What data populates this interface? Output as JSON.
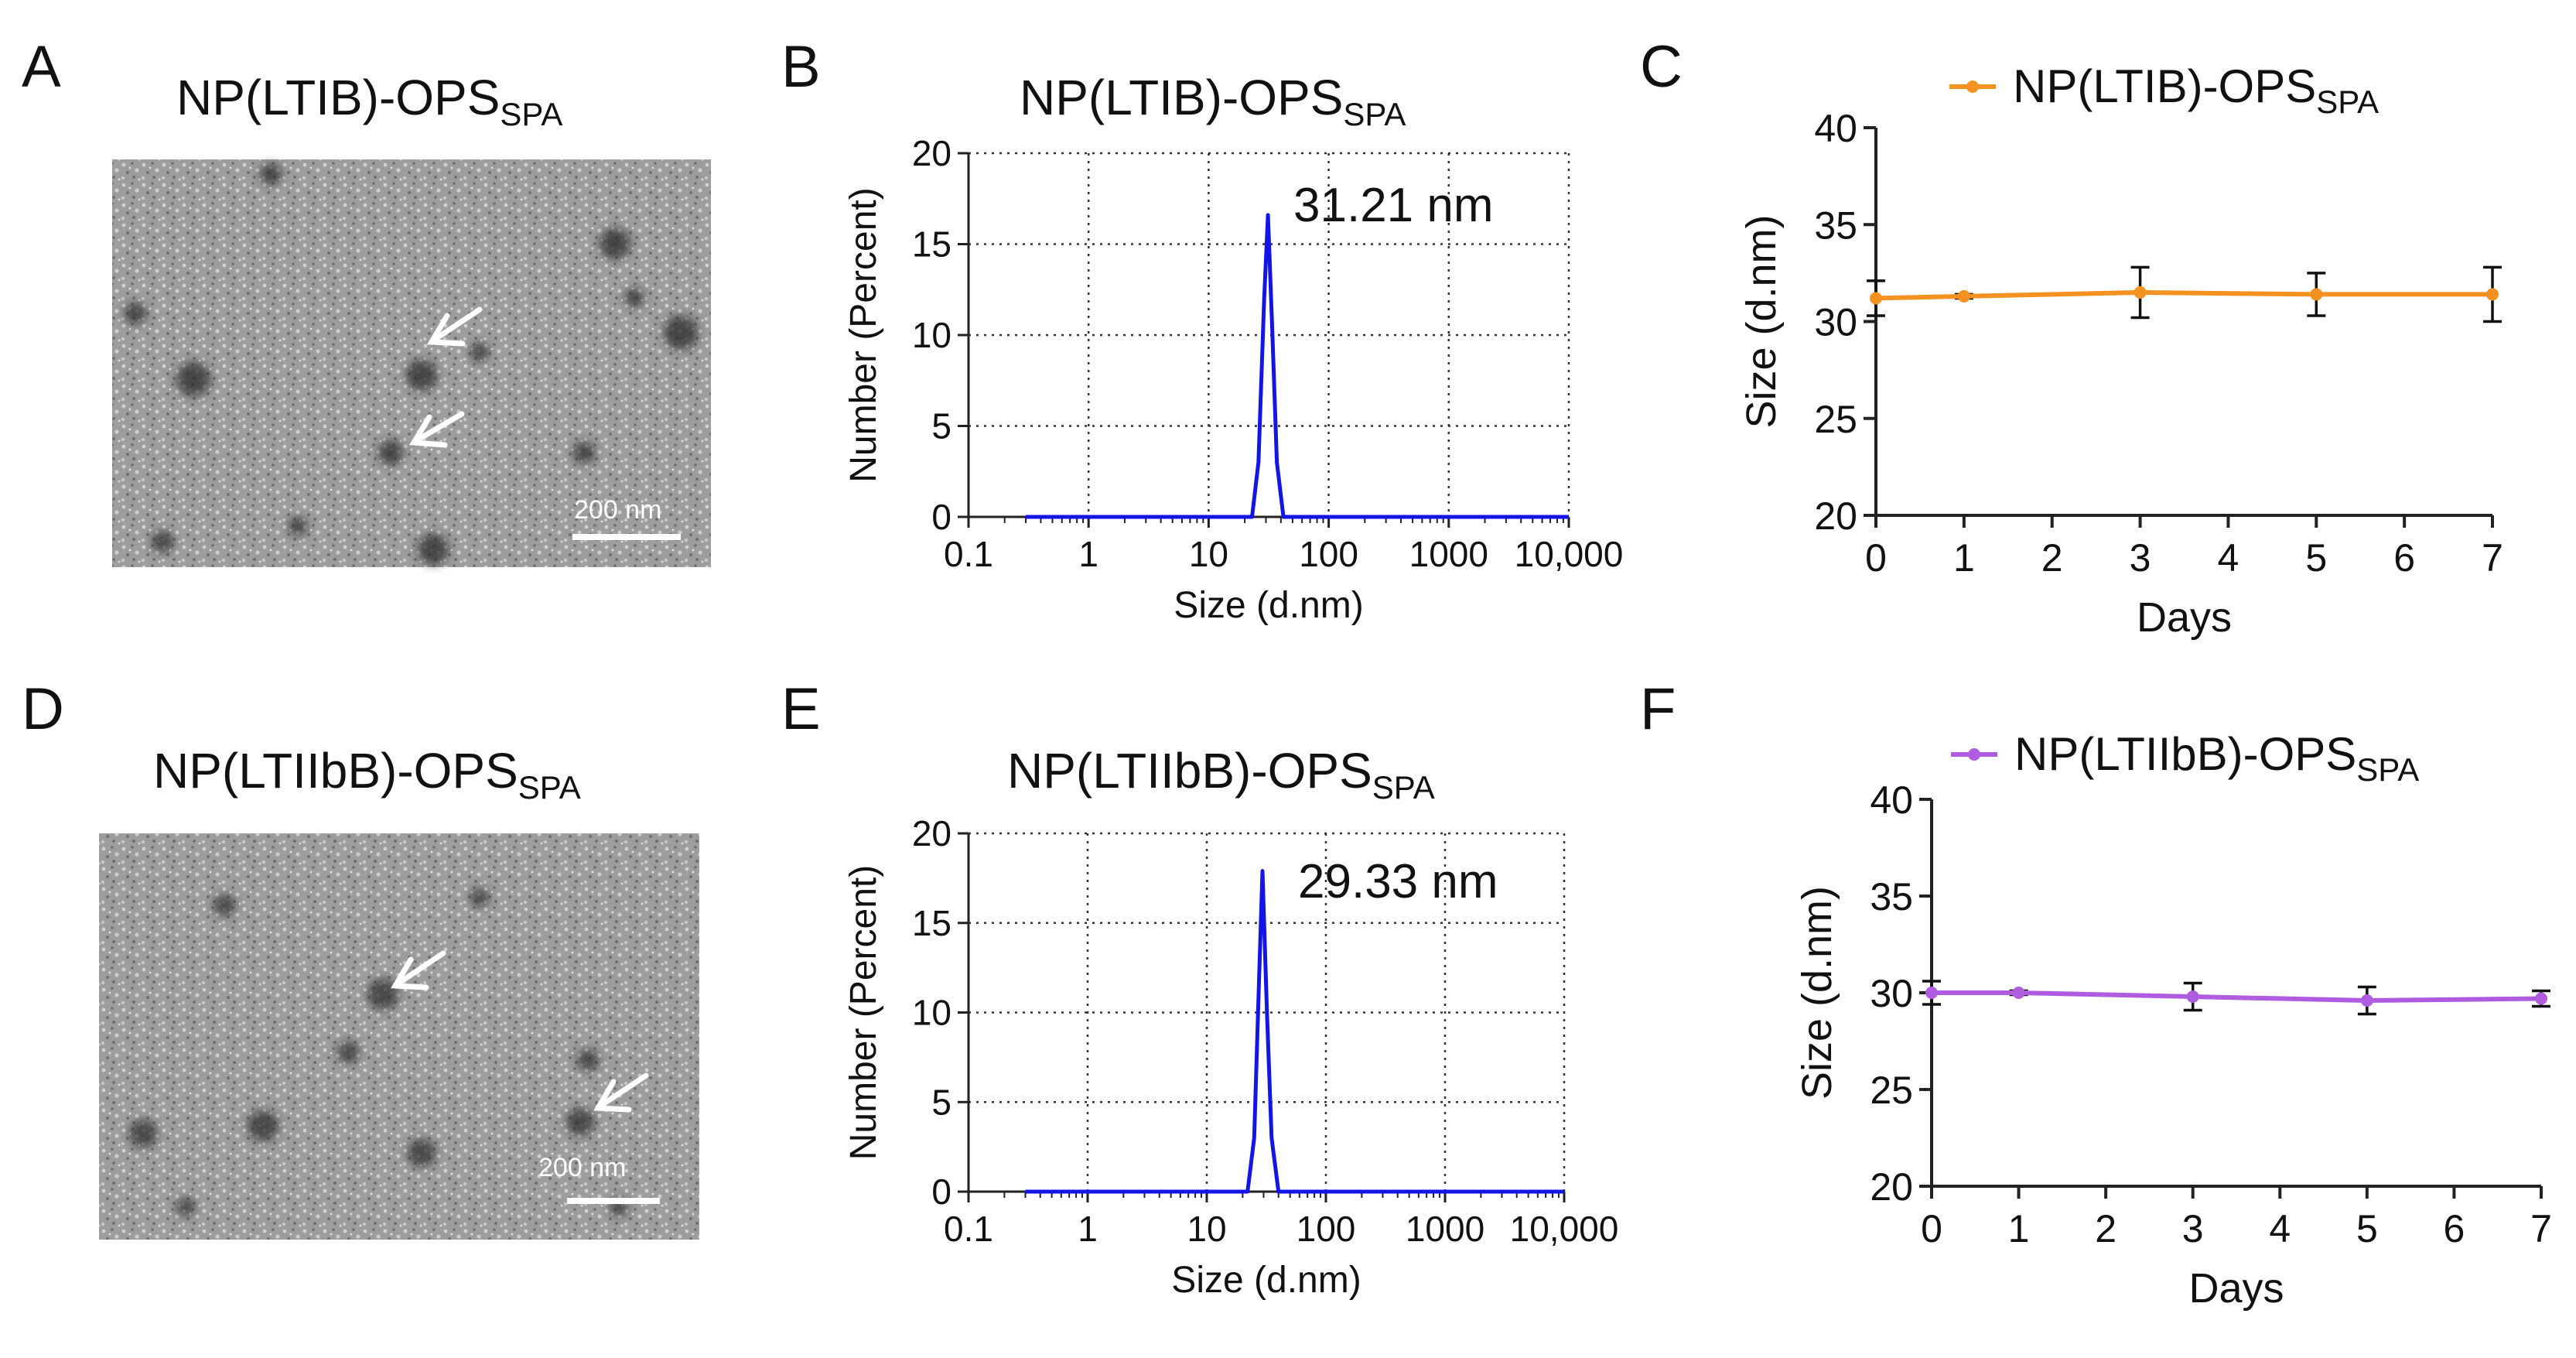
{
  "panels": {
    "A": {
      "letter": "A",
      "title": "NP(LTIB)-OPS",
      "title_sub": "SPA",
      "scale_bar": "200 nm"
    },
    "B": {
      "letter": "B"
    },
    "C": {
      "letter": "C"
    },
    "D": {
      "letter": "D",
      "title": "NP(LTIIbB)-OPS",
      "title_sub": "SPA",
      "scale_bar": "200 nm"
    },
    "E": {
      "letter": "E"
    },
    "F": {
      "letter": "F"
    }
  },
  "chart_data": [
    {
      "panel": "B",
      "type": "line",
      "title": "NP(LTIB)-OPS",
      "title_sub": "SPA",
      "xlabel": "Size (d.nm)",
      "ylabel": "Number (Percent)",
      "xscale": "log",
      "xlim": [
        0.1,
        10000
      ],
      "ylim": [
        0,
        20
      ],
      "xticks": [
        "0.1",
        "1",
        "10",
        "100",
        "1000",
        "10,000"
      ],
      "yticks": [
        "0",
        "5",
        "10",
        "15",
        "20"
      ],
      "grid": true,
      "color": "#1414e6",
      "annotation": "31.21 nm",
      "series": [
        {
          "x": [
            0.3,
            23,
            26,
            29,
            31.21,
            34,
            37,
            42,
            10000
          ],
          "y": [
            0,
            0,
            3,
            12,
            16.6,
            10,
            3,
            0,
            0
          ]
        }
      ]
    },
    {
      "panel": "E",
      "type": "line",
      "title": "NP(LTIIbB)-OPS",
      "title_sub": "SPA",
      "xlabel": "Size (d.nm)",
      "ylabel": "Number (Percent)",
      "xscale": "log",
      "xlim": [
        0.1,
        10000
      ],
      "ylim": [
        0,
        20
      ],
      "xticks": [
        "0.1",
        "1",
        "10",
        "100",
        "1000",
        "10,000"
      ],
      "yticks": [
        "0",
        "5",
        "10",
        "15",
        "20"
      ],
      "grid": true,
      "color": "#1414e6",
      "annotation": "29.33 nm",
      "series": [
        {
          "x": [
            0.3,
            22,
            25,
            27.5,
            29.33,
            32,
            35,
            40,
            10000
          ],
          "y": [
            0,
            0,
            3,
            12,
            17.9,
            10,
            3,
            0,
            0
          ]
        }
      ]
    },
    {
      "panel": "C",
      "type": "line",
      "xlabel": "Days",
      "ylabel": "Size (d.nm)",
      "xlim": [
        0,
        7
      ],
      "ylim": [
        20,
        40
      ],
      "xticks": [
        "0",
        "1",
        "2",
        "3",
        "4",
        "5",
        "6",
        "7"
      ],
      "yticks": [
        "20",
        "25",
        "30",
        "35",
        "40"
      ],
      "grid": false,
      "legend": "top",
      "series": [
        {
          "name": "NP(LTIB)-OPS",
          "name_sub": "SPA",
          "color": "#f39220",
          "x": [
            0,
            1,
            3,
            5,
            7
          ],
          "y": [
            31.2,
            31.3,
            31.5,
            31.4,
            31.4
          ],
          "err": [
            0.9,
            0.1,
            1.3,
            1.1,
            1.4
          ]
        }
      ]
    },
    {
      "panel": "F",
      "type": "line",
      "xlabel": "Days",
      "ylabel": "Size (d.nm)",
      "xlim": [
        0,
        7
      ],
      "ylim": [
        20,
        40
      ],
      "xticks": [
        "0",
        "1",
        "2",
        "3",
        "4",
        "5",
        "6",
        "7"
      ],
      "yticks": [
        "20",
        "25",
        "30",
        "35",
        "40"
      ],
      "grid": false,
      "legend": "top",
      "series": [
        {
          "name": "NP(LTIIbB)-OPS",
          "name_sub": "SPA",
          "color": "#b05ce0",
          "x": [
            0,
            1,
            3,
            5,
            7
          ],
          "y": [
            30.0,
            30.0,
            29.8,
            29.6,
            29.7
          ],
          "err": [
            0.6,
            0.1,
            0.7,
            0.7,
            0.4
          ]
        }
      ]
    }
  ]
}
